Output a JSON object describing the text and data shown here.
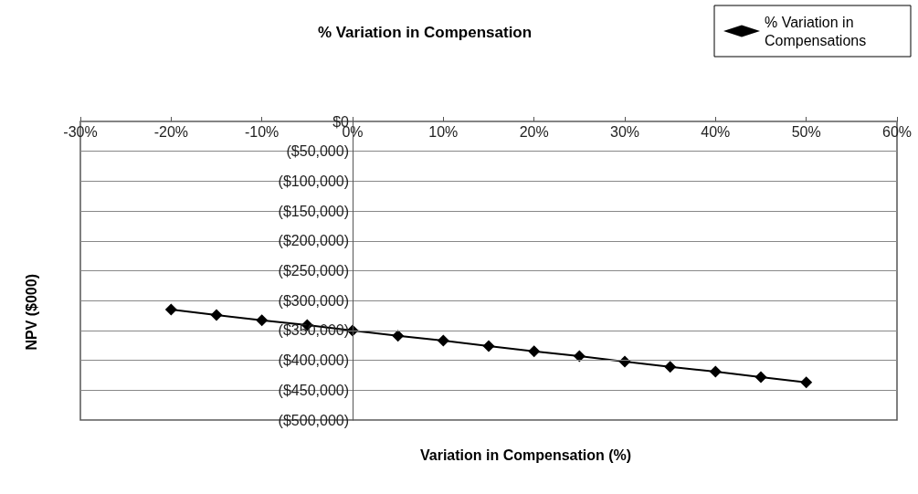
{
  "chart_data": {
    "type": "line",
    "title": "% Variation in Compensation",
    "xlabel": "Variation in Compensation (%)",
    "ylabel": "NPV ($000)",
    "x": [
      -20,
      -15,
      -10,
      -5,
      0,
      5,
      10,
      15,
      20,
      25,
      30,
      35,
      40,
      45,
      50
    ],
    "series": [
      {
        "name": "% Variation in Compensations",
        "color": "#000000",
        "values": [
          -315000,
          -324000,
          -333000,
          -341000,
          -350000,
          -359000,
          -367000,
          -376000,
          -385000,
          -393000,
          -402000,
          -411000,
          -419000,
          -428000,
          -437000
        ]
      }
    ],
    "xlim": [
      -30,
      60
    ],
    "xticks": [
      {
        "value": -30,
        "label": "-30%"
      },
      {
        "value": -20,
        "label": "-20%"
      },
      {
        "value": -10,
        "label": "-10%"
      },
      {
        "value": 0,
        "label": "0%"
      },
      {
        "value": 10,
        "label": "10%"
      },
      {
        "value": 20,
        "label": "20%"
      },
      {
        "value": 30,
        "label": "30%"
      },
      {
        "value": 40,
        "label": "40%"
      },
      {
        "value": 50,
        "label": "50%"
      },
      {
        "value": 60,
        "label": "60%"
      }
    ],
    "ylim": [
      -500000,
      0
    ],
    "yticks": [
      {
        "value": 0,
        "label": "$0"
      },
      {
        "value": -50000,
        "label": "($50,000)"
      },
      {
        "value": -100000,
        "label": "($100,000)"
      },
      {
        "value": -150000,
        "label": "($150,000)"
      },
      {
        "value": -200000,
        "label": "($200,000)"
      },
      {
        "value": -250000,
        "label": "($250,000)"
      },
      {
        "value": -300000,
        "label": "($300,000)"
      },
      {
        "value": -350000,
        "label": "($350,000)"
      },
      {
        "value": -400000,
        "label": "($400,000)"
      },
      {
        "value": -450000,
        "label": "($450,000)"
      },
      {
        "value": -500000,
        "label": "($500,000)"
      }
    ],
    "grid": "y",
    "legend": "top right",
    "marker": "diamond",
    "line_style": "solid"
  }
}
